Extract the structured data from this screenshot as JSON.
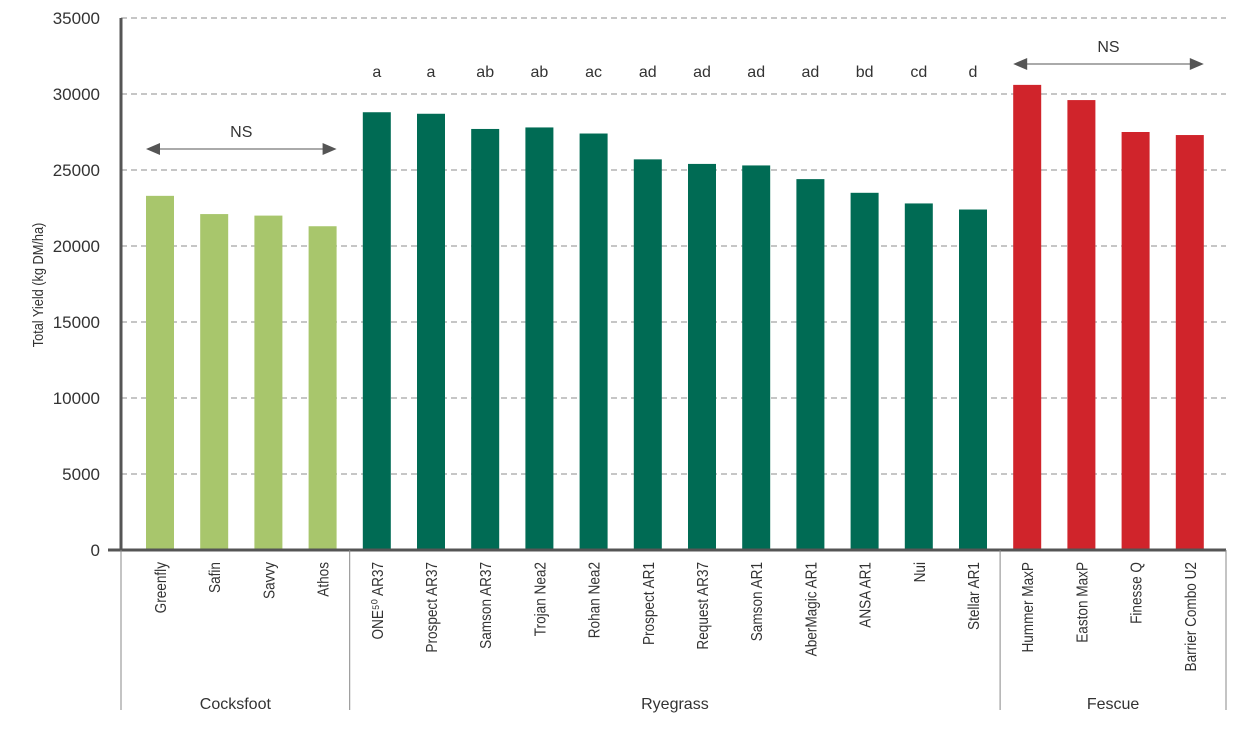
{
  "chart_data": {
    "type": "bar",
    "ylabel": "Total Yield (kg DM/ha)",
    "ylim": [
      0,
      35000
    ],
    "yticks": [
      0,
      5000,
      10000,
      15000,
      20000,
      25000,
      30000,
      35000
    ],
    "grid": true,
    "groups": [
      {
        "name": "Cocksfoot",
        "color": "#a8c66c",
        "bars": [
          {
            "label": "Greenfly",
            "value": 23300
          },
          {
            "label": "Safin",
            "value": 22100
          },
          {
            "label": "Savvy",
            "value": 22000
          },
          {
            "label": "Athos",
            "value": 21300
          }
        ],
        "annotation": "NS"
      },
      {
        "name": "Ryegrass",
        "color": "#006b54",
        "bars": [
          {
            "label": "ONE⁵⁰ AR37",
            "value": 28800,
            "letter": "a"
          },
          {
            "label": "Prospect AR37",
            "value": 28700,
            "letter": "a"
          },
          {
            "label": "Samson AR37",
            "value": 27700,
            "letter": "ab"
          },
          {
            "label": "Trojan Nea2",
            "value": 27800,
            "letter": "ab"
          },
          {
            "label": "Rohan Nea2",
            "value": 27400,
            "letter": "ac"
          },
          {
            "label": "Prospect AR1",
            "value": 25700,
            "letter": "ad"
          },
          {
            "label": "Request AR37",
            "value": 25400,
            "letter": "ad"
          },
          {
            "label": "Samson AR1",
            "value": 25300,
            "letter": "ad"
          },
          {
            "label": "AberMagic AR1",
            "value": 24400,
            "letter": "ad"
          },
          {
            "label": "ANSA AR1",
            "value": 23500,
            "letter": "bd"
          },
          {
            "label": "Nui",
            "value": 22800,
            "letter": "cd"
          },
          {
            "label": "Stellar AR1",
            "value": 22400,
            "letter": "d"
          }
        ]
      },
      {
        "name": "Fescue",
        "color": "#d0242b",
        "bars": [
          {
            "label": "Hummer MaxP",
            "value": 30600
          },
          {
            "label": "Easton MaxP",
            "value": 29600
          },
          {
            "label": "Finesse Q",
            "value": 27500
          },
          {
            "label": "Barrier Combo U2",
            "value": 27300
          }
        ],
        "annotation": "NS"
      }
    ]
  }
}
